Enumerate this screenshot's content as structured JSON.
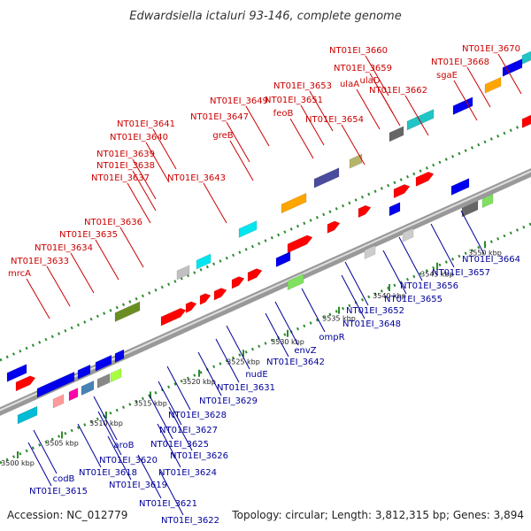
{
  "title": "Edwardsiella ictaluri 93-146, complete genome",
  "footer": {
    "accession": "Accession: NC_012779",
    "summary": "Topology: circular; Length: 3,812,315 bp; Genes: 3,894"
  },
  "colors": {
    "top_label": "#cc0000",
    "bottom_label": "#000099",
    "forward_gene": "#ff0000",
    "reverse_gene": "#0000ee",
    "backbone": "#999999",
    "tick_green": "#2e8b2e"
  },
  "scale": {
    "unit": "kbp",
    "ticks": [
      "3500 kbp",
      "3505 kbp",
      "3510 kbp",
      "3515 kbp",
      "3520 kbp",
      "3525 kbp",
      "3530 kbp",
      "3535 kbp",
      "3540 kbp",
      "3545 kbp",
      "3550 kbp"
    ]
  },
  "top_labels": [
    "NT01EI_3670",
    "NT01EI_3668",
    "NT01EI_3660",
    "sgaE",
    "NT01EI_3659",
    "ulaD",
    "ulaA",
    "NT01EI_3662",
    "NT01EI_3653",
    "NT01EI_3651",
    "NT01EI_3654",
    "feoB",
    "NT01EI_3649",
    "NT01EI_3647",
    "greB",
    "NT01EI_3641",
    "NT01EI_3640",
    "NT01EI_3639",
    "NT01EI_3638",
    "NT01EI_3637",
    "NT01EI_3643",
    "NT01EI_3636",
    "NT01EI_3635",
    "NT01EI_3634",
    "NT01EI_3633",
    "mrcA"
  ],
  "bottom_labels": [
    "NT01EI_3615",
    "codB",
    "NT01EI_3618",
    "NT01EI_3619",
    "NT01EI_3621",
    "NT01EI_3622",
    "NT01EI_3620",
    "aroB",
    "NT01EI_3624",
    "NT01EI_3625",
    "NT01EI_3626",
    "NT01EI_3627",
    "NT01EI_3628",
    "NT01EI_3629",
    "NT01EI_3631",
    "nudE",
    "NT01EI_3642",
    "envZ",
    "ompR",
    "NT01EI_3648",
    "NT01EI_3652",
    "NT01EI_3655",
    "NT01EI_3656",
    "NT01EI_3657",
    "NT01EI_3664"
  ]
}
